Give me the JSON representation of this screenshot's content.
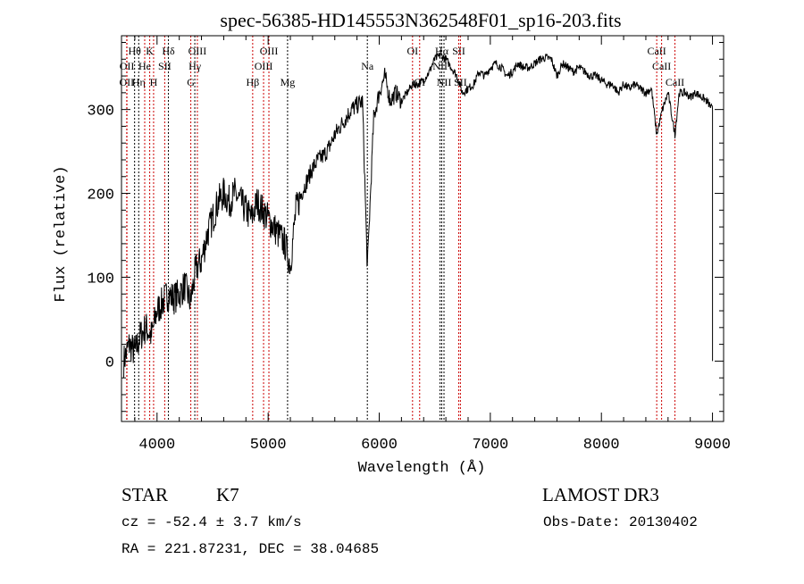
{
  "chart_data": {
    "type": "line",
    "title": "spec-56385-HD145553N362548F01_sp16-203.fits",
    "xlabel": "Wavelength (Å)",
    "ylabel": "Flux (relative)",
    "xlim": [
      3680,
      9100
    ],
    "ylim": [
      -72,
      388
    ],
    "xticks": [
      4000,
      5000,
      6000,
      7000,
      8000,
      9000
    ],
    "yticks": [
      0,
      100,
      200,
      300
    ],
    "grid": false,
    "series": [
      {
        "name": "spectrum",
        "x": [
          3700,
          3750,
          3800,
          3850,
          3900,
          3950,
          4000,
          4050,
          4100,
          4150,
          4200,
          4250,
          4300,
          4350,
          4400,
          4450,
          4500,
          4550,
          4600,
          4650,
          4700,
          4750,
          4800,
          4850,
          4900,
          4950,
          5000,
          5050,
          5100,
          5150,
          5200,
          5250,
          5300,
          5350,
          5400,
          5450,
          5500,
          5550,
          5600,
          5650,
          5700,
          5750,
          5800,
          5850,
          5893,
          5950,
          6000,
          6050,
          6100,
          6150,
          6200,
          6250,
          6300,
          6350,
          6400,
          6450,
          6500,
          6550,
          6600,
          6650,
          6700,
          6750,
          6800,
          6850,
          6900,
          6950,
          7000,
          7050,
          7100,
          7150,
          7200,
          7250,
          7300,
          7350,
          7400,
          7450,
          7500,
          7550,
          7600,
          7650,
          7700,
          7750,
          7800,
          7850,
          7900,
          7950,
          8000,
          8050,
          8100,
          8150,
          8200,
          8250,
          8300,
          8350,
          8400,
          8450,
          8498,
          8550,
          8600,
          8662,
          8700,
          8750,
          8800,
          8850,
          8900,
          8950,
          9000
        ],
        "y": [
          0,
          20,
          10,
          30,
          40,
          30,
          60,
          70,
          80,
          75,
          80,
          90,
          70,
          110,
          120,
          150,
          170,
          190,
          200,
          190,
          200,
          190,
          180,
          170,
          190,
          180,
          170,
          160,
          150,
          140,
          115,
          180,
          200,
          215,
          230,
          240,
          245,
          255,
          270,
          280,
          290,
          300,
          305,
          310,
          110,
          290,
          320,
          340,
          310,
          320,
          310,
          320,
          330,
          330,
          335,
          345,
          360,
          365,
          360,
          350,
          340,
          320,
          325,
          330,
          345,
          340,
          350,
          355,
          350,
          340,
          345,
          355,
          350,
          350,
          355,
          360,
          362,
          360,
          340,
          355,
          350,
          345,
          350,
          345,
          340,
          340,
          335,
          330,
          330,
          320,
          330,
          325,
          330,
          325,
          320,
          325,
          270,
          300,
          320,
          270,
          320,
          320,
          315,
          320,
          315,
          310,
          300
        ]
      }
    ],
    "lines": [
      {
        "label": "OII",
        "wl": 3727,
        "row": 2,
        "color": "#cc0000"
      },
      {
        "label": "OII",
        "wl": 3729,
        "row": 1,
        "color": "#cc0000"
      },
      {
        "label": "Hθ",
        "wl": 3798,
        "row": 0,
        "color": "#000000"
      },
      {
        "label": "Hη",
        "wl": 3835,
        "row": 2,
        "color": "#000000"
      },
      {
        "label": "K",
        "wl": 3934,
        "row": 0,
        "color": "#cc0000"
      },
      {
        "label": "He",
        "wl": 3889,
        "row": 1,
        "color": "#cc0000"
      },
      {
        "label": "H",
        "wl": 3969,
        "row": 2,
        "color": "#cc0000"
      },
      {
        "label": "SII",
        "wl": 4069,
        "row": 1,
        "color": "#cc0000"
      },
      {
        "label": "Hδ",
        "wl": 4102,
        "row": 0,
        "color": "#000000"
      },
      {
        "label": "G",
        "wl": 4304,
        "row": 2,
        "color": "#cc0000"
      },
      {
        "label": "Hγ",
        "wl": 4340,
        "row": 1,
        "color": "#000000"
      },
      {
        "label": "OIII",
        "wl": 4363,
        "row": 0,
        "color": "#cc0000"
      },
      {
        "label": "Hβ",
        "wl": 4861,
        "row": 2,
        "color": "#cc0000"
      },
      {
        "label": "OIII",
        "wl": 4959,
        "row": 1,
        "color": "#cc0000"
      },
      {
        "label": "OIII",
        "wl": 5007,
        "row": 0,
        "color": "#cc0000"
      },
      {
        "label": "Mg",
        "wl": 5175,
        "row": 2,
        "color": "#000000"
      },
      {
        "label": "Na",
        "wl": 5893,
        "row": 1,
        "color": "#000000"
      },
      {
        "label": "OI",
        "wl": 6300,
        "row": 0,
        "color": "#cc0000"
      },
      {
        "label": "OI",
        "wl": 6364,
        "row": 2,
        "color": "#cc0000"
      },
      {
        "label": "NII",
        "wl": 6548,
        "row": 1,
        "color": "#000000"
      },
      {
        "label": "Hα",
        "wl": 6563,
        "row": 0,
        "color": "#000000"
      },
      {
        "label": "NII",
        "wl": 6583,
        "row": 2,
        "color": "#000000"
      },
      {
        "label": "SII",
        "wl": 6716,
        "row": 0,
        "color": "#cc0000"
      },
      {
        "label": "SII",
        "wl": 6731,
        "row": 2,
        "color": "#cc0000"
      },
      {
        "label": "CaII",
        "wl": 8498,
        "row": 0,
        "color": "#cc0000"
      },
      {
        "label": "CaII",
        "wl": 8542,
        "row": 1,
        "color": "#cc0000"
      },
      {
        "label": "CaII",
        "wl": 8662,
        "row": 2,
        "color": "#cc0000"
      }
    ]
  },
  "info": {
    "class": "STAR",
    "subclass": "K7",
    "survey": "LAMOST DR3",
    "cz": "cz = -52.4 ± 3.7 km/s",
    "obs_date": "Obs-Date: 20130402",
    "radec": "RA = 221.87231, DEC =  38.04685"
  }
}
